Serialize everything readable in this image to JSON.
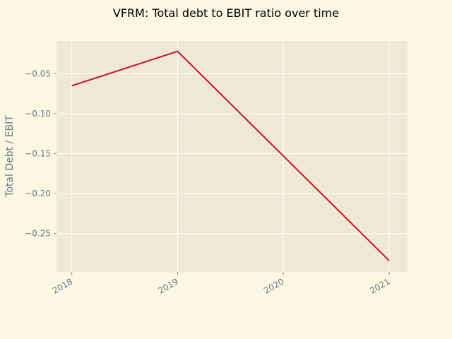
{
  "chart_data": {
    "type": "line",
    "title": "VFRM: Total debt to EBIT ratio over time",
    "xlabel": "",
    "ylabel": "Total Debt / EBIT",
    "x": [
      "2018",
      "2019",
      "2020",
      "2021"
    ],
    "series": [
      {
        "values": [
          -0.065,
          -0.022,
          null,
          -0.284
        ],
        "color": "#c8102e"
      }
    ],
    "x_ticks": [
      "2018",
      "2019",
      "2020",
      "2021"
    ],
    "y_ticks": [
      -0.05,
      -0.1,
      -0.15,
      -0.2,
      -0.25
    ],
    "y_tick_labels": [
      "−0.05",
      "−0.10",
      "−0.15",
      "−0.20",
      "−0.25"
    ],
    "xlim": [
      "2017-11-09",
      "2021-03-05"
    ],
    "ylim": [
      -0.298,
      -0.009
    ],
    "grid": true,
    "colors": {
      "figure_bg": "#fdf6e3",
      "plot_bg": "#eee8d5",
      "grid": "#ffffff",
      "tick_text": "#657b83",
      "line": "#c8102e"
    }
  }
}
